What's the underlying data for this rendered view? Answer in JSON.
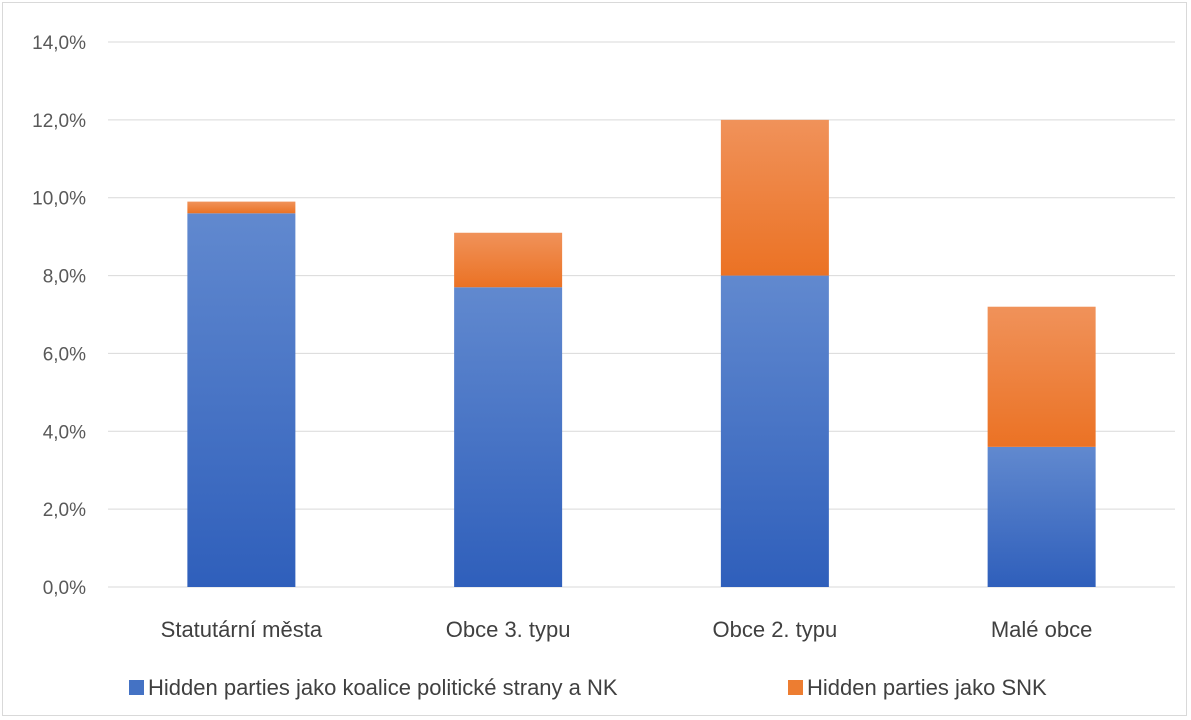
{
  "chart_data": {
    "type": "bar",
    "stacked": true,
    "categories": [
      "Statutární města",
      "Obce 3. typu",
      "Obce 2. typu",
      "Malé obce"
    ],
    "series": [
      {
        "name": "Hidden parties jako koalice politické strany a NK",
        "color": "#4472c4",
        "values": [
          9.6,
          7.7,
          8.0,
          3.6
        ]
      },
      {
        "name": "Hidden parties jako SNK",
        "color": "#ed7d31",
        "values": [
          0.3,
          1.4,
          4.0,
          3.6
        ]
      }
    ],
    "title": "",
    "xlabel": "",
    "ylabel": "",
    "ylim": [
      0,
      14
    ],
    "yticks": [
      "0,0%",
      "2,0%",
      "4,0%",
      "6,0%",
      "8,0%",
      "10,0%",
      "12,0%",
      "14,0%"
    ],
    "grid": true,
    "legend_position": "bottom"
  }
}
